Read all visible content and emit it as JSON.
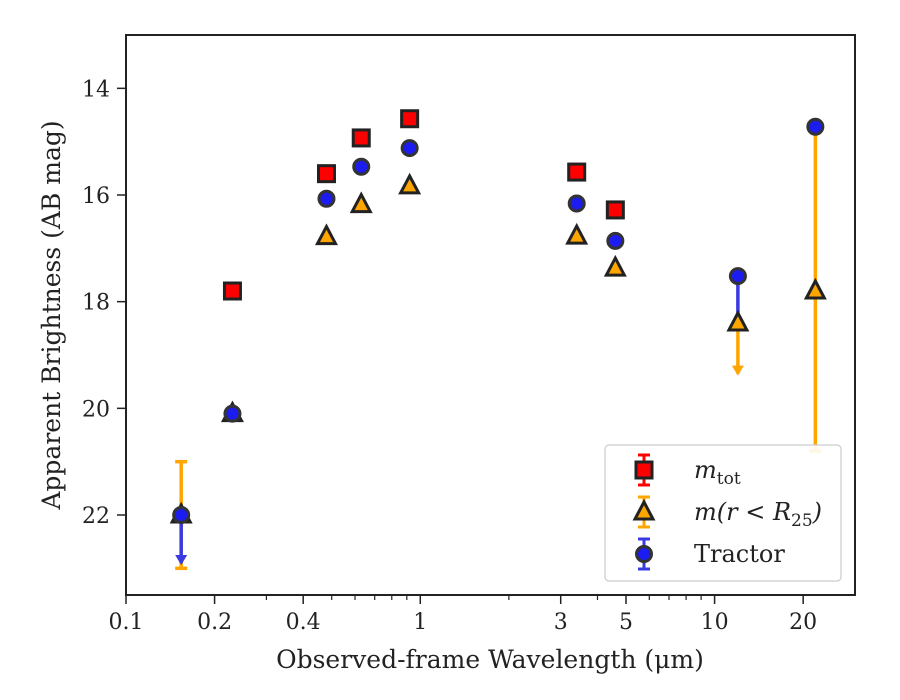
{
  "chart_data": {
    "type": "scatter",
    "xlabel": "Observed-frame Wavelength (μm)",
    "ylabel": "Apparent Brightness (AB mag)",
    "x_scale": "log",
    "y_inverted": true,
    "xlim": [
      0.1,
      30
    ],
    "ylim": [
      23.5,
      13
    ],
    "x_ticks": [
      {
        "value": 0.1,
        "label": "0.1"
      },
      {
        "value": 0.2,
        "label": "0.2"
      },
      {
        "value": 0.4,
        "label": "0.4"
      },
      {
        "value": 1,
        "label": "1"
      },
      {
        "value": 3,
        "label": "3"
      },
      {
        "value": 5,
        "label": "5"
      },
      {
        "value": 10,
        "label": "10"
      },
      {
        "value": 20,
        "label": "20"
      }
    ],
    "y_ticks": [
      {
        "value": 14,
        "label": "14"
      },
      {
        "value": 16,
        "label": "16"
      },
      {
        "value": 18,
        "label": "18"
      },
      {
        "value": 20,
        "label": "20"
      },
      {
        "value": 22,
        "label": "22"
      }
    ],
    "grid": false,
    "legend_position": "bottom-right",
    "series": [
      {
        "name": "m_tot",
        "marker": "square",
        "color": "#ff0000",
        "edge_color": "#222222",
        "points": [
          {
            "x": 0.23,
            "y": 17.8
          },
          {
            "x": 0.48,
            "y": 15.6
          },
          {
            "x": 0.63,
            "y": 14.93
          },
          {
            "x": 0.92,
            "y": 14.57
          },
          {
            "x": 3.4,
            "y": 15.57
          },
          {
            "x": 4.6,
            "y": 16.28
          }
        ]
      },
      {
        "name": "m(r < R_25)",
        "marker": "triangle",
        "color": "#ffa500",
        "edge_color": "#222222",
        "errorbar_color": "#ffa500",
        "points": [
          {
            "x": 0.154,
            "y": 22.0,
            "err_up": 1.0,
            "err_down": 1.0,
            "upper_limit": false
          },
          {
            "x": 0.23,
            "y": 20.1
          },
          {
            "x": 0.48,
            "y": 16.78
          },
          {
            "x": 0.63,
            "y": 16.18
          },
          {
            "x": 0.92,
            "y": 15.83
          },
          {
            "x": 3.4,
            "y": 16.77
          },
          {
            "x": 4.6,
            "y": 17.37
          },
          {
            "x": 12.0,
            "y": 18.4,
            "err_up": 0,
            "err_down": 0.95,
            "upper_limit": true
          },
          {
            "x": 22.0,
            "y": 17.8,
            "err_up": 3.0,
            "err_down": 3.0,
            "upper_limit": false
          }
        ]
      },
      {
        "name": "Tractor",
        "marker": "circle",
        "color": "#1c1cf0",
        "edge_color": "#333333",
        "errorbar_color": "#3a3ae0",
        "points": [
          {
            "x": 0.154,
            "y": 22.0,
            "err_up": 0,
            "err_down": 0.9,
            "upper_limit": true
          },
          {
            "x": 0.23,
            "y": 20.1
          },
          {
            "x": 0.48,
            "y": 16.07
          },
          {
            "x": 0.63,
            "y": 15.47
          },
          {
            "x": 0.92,
            "y": 15.12
          },
          {
            "x": 3.4,
            "y": 16.16
          },
          {
            "x": 4.6,
            "y": 16.86
          },
          {
            "x": 12.0,
            "y": 17.52,
            "err_up": 0,
            "err_down": 0.9,
            "upper_limit": false
          },
          {
            "x": 22.0,
            "y": 14.72
          }
        ]
      }
    ],
    "legend": [
      {
        "marker": "square",
        "label_main": "m",
        "label_sub": "tot",
        "label_suffix": ""
      },
      {
        "marker": "triangle",
        "label_main": "m(r < R",
        "label_sub": "25",
        "label_suffix": ")"
      },
      {
        "marker": "circle",
        "label_main": "Tractor",
        "label_sub": "",
        "label_suffix": ""
      }
    ]
  }
}
